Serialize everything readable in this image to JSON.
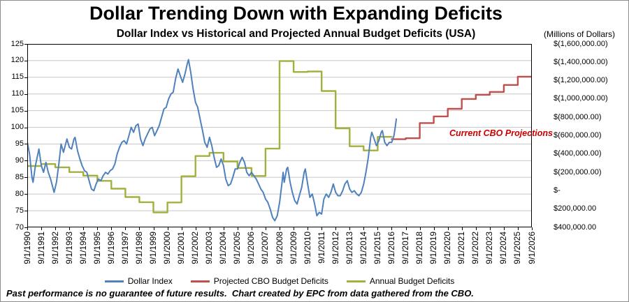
{
  "footer": {
    "disclaimer": "Past performance is no guarantee of future results.  Chart created by EPC from data gathered from the CBO."
  },
  "chart_data": {
    "type": "line",
    "title": "Dollar Trending Down with Expanding Deficits",
    "subtitle": "Dollar Index vs Historical and Projected Annual Budget Deficits (USA)",
    "grid": true,
    "legend_position": "bottom",
    "annotation": {
      "text": "Current CBO Projections",
      "color": "#cc0000"
    },
    "x_axis": {
      "min": 1990.667,
      "max": 2026.667,
      "tick_labels": [
        "9/1/1990",
        "9/1/1991",
        "9/1/1992",
        "9/1/1993",
        "9/1/1994",
        "9/1/1995",
        "9/1/1996",
        "9/1/1997",
        "9/1/1998",
        "9/1/1999",
        "9/1/2000",
        "9/1/2001",
        "9/1/2002",
        "9/1/2003",
        "9/1/2004",
        "9/1/2005",
        "9/1/2006",
        "9/1/2007",
        "9/1/2008",
        "9/1/2009",
        "9/1/2010",
        "9/1/2011",
        "9/1/2012",
        "9/1/2013",
        "9/1/2014",
        "9/1/2015",
        "9/1/2016",
        "9/1/2017",
        "9/1/2018",
        "9/1/2019",
        "9/1/2020",
        "9/1/2021",
        "9/1/2022",
        "9/1/2023",
        "9/1/2024",
        "9/1/2025",
        "9/1/2026"
      ]
    },
    "left_axis": {
      "min": 70,
      "max": 125,
      "tick_step": 5,
      "ticks": [
        125,
        120,
        115,
        110,
        105,
        100,
        95,
        90,
        85,
        80,
        75,
        70
      ]
    },
    "right_axis": {
      "units_label": "(Millions of Dollars)",
      "top_value": -1600000,
      "bottom_value": 400000,
      "tick_labels": [
        "$(1,600,000.00)",
        "$(1,400,000.00)",
        "$(1,200,000.00)",
        "$(1,000,000.00)",
        "$(800,000.00)",
        "$(600,000.00)",
        "$(400,000.00)",
        "$(200,000.00)",
        "$-",
        "$200,000.00",
        "$400,000.00"
      ]
    },
    "legend": [
      {
        "id": "dollar-index",
        "label": "Dollar Index",
        "color": "#4f81bd"
      },
      {
        "id": "projected-cbo-budget-deficits",
        "label": "Projected CBO Budget Deficits",
        "color": "#c0504d"
      },
      {
        "id": "annual-budget-deficits",
        "label": "Annual Budget Deficits",
        "color": "#a4b03c"
      }
    ],
    "series": [
      {
        "id": "annual-budget-deficits",
        "name": "Annual Budget Deficits",
        "axis": "right",
        "color": "#a4b03c",
        "width": 2.4,
        "step": true,
        "years": [
          1990,
          1991,
          1992,
          1993,
          1994,
          1995,
          1996,
          1997,
          1998,
          1999,
          2000,
          2001,
          2002,
          2003,
          2004,
          2005,
          2006,
          2007,
          2008,
          2009,
          2010,
          2011,
          2012,
          2013,
          2014,
          2015,
          2016
        ],
        "values": [
          -221036,
          -269238,
          -290321,
          -255051,
          -203186,
          -163952,
          -107431,
          -21884,
          69270,
          125610,
          236241,
          128236,
          -157758,
          -377585,
          -412727,
          -318346,
          -248181,
          -160701,
          -458553,
          -1412688,
          -1294373,
          -1299593,
          -1086963,
          -679544,
          -484602,
          -438496,
          -587412
        ]
      },
      {
        "id": "projected-cbo-budget-deficits",
        "name": "Projected CBO Budget Deficits",
        "axis": "right",
        "color": "#c0504d",
        "width": 2.4,
        "step": true,
        "years": [
          2017,
          2018,
          2019,
          2020,
          2021,
          2022,
          2023,
          2024,
          2025,
          2026
        ],
        "values": [
          -561000,
          -572000,
          -738000,
          -810000,
          -893000,
          -1000000,
          -1046000,
          -1077000,
          -1153000,
          -1243000
        ]
      },
      {
        "id": "dollar-index",
        "name": "Dollar Index",
        "axis": "left",
        "color": "#4f81bd",
        "width": 2,
        "step": false,
        "points": [
          [
            1990.67,
            95.5
          ],
          [
            1990.83,
            92
          ],
          [
            1991.0,
            85
          ],
          [
            1991.08,
            83.5
          ],
          [
            1991.25,
            88.5
          ],
          [
            1991.5,
            93.5
          ],
          [
            1991.67,
            88.5
          ],
          [
            1991.83,
            86.5
          ],
          [
            1992.0,
            89.5
          ],
          [
            1992.17,
            86.5
          ],
          [
            1992.33,
            84.5
          ],
          [
            1992.58,
            80.5
          ],
          [
            1992.75,
            83.5
          ],
          [
            1992.92,
            89
          ],
          [
            1993.08,
            95
          ],
          [
            1993.25,
            92.5
          ],
          [
            1993.5,
            96.5
          ],
          [
            1993.67,
            94
          ],
          [
            1993.83,
            93.5
          ],
          [
            1994.0,
            96.5
          ],
          [
            1994.08,
            97
          ],
          [
            1994.25,
            93
          ],
          [
            1994.42,
            90.5
          ],
          [
            1994.58,
            88.5
          ],
          [
            1994.75,
            87
          ],
          [
            1994.92,
            86.5
          ],
          [
            1995.08,
            84
          ],
          [
            1995.25,
            81.5
          ],
          [
            1995.42,
            81
          ],
          [
            1995.58,
            83
          ],
          [
            1995.75,
            84.5
          ],
          [
            1995.92,
            84
          ],
          [
            1996.08,
            85.5
          ],
          [
            1996.25,
            86.5
          ],
          [
            1996.42,
            86
          ],
          [
            1996.58,
            87
          ],
          [
            1996.75,
            87.5
          ],
          [
            1996.92,
            89
          ],
          [
            1997.08,
            92
          ],
          [
            1997.25,
            94
          ],
          [
            1997.42,
            95.5
          ],
          [
            1997.58,
            96
          ],
          [
            1997.75,
            95
          ],
          [
            1997.92,
            97.5
          ],
          [
            1998.08,
            100
          ],
          [
            1998.25,
            98.5
          ],
          [
            1998.42,
            100.5
          ],
          [
            1998.58,
            101
          ],
          [
            1998.75,
            96.5
          ],
          [
            1998.92,
            94.5
          ],
          [
            1999.08,
            96.5
          ],
          [
            1999.25,
            98
          ],
          [
            1999.42,
            99.5
          ],
          [
            1999.58,
            100
          ],
          [
            1999.75,
            97.5
          ],
          [
            1999.92,
            99
          ],
          [
            2000.08,
            100.5
          ],
          [
            2000.25,
            103
          ],
          [
            2000.42,
            105.5
          ],
          [
            2000.58,
            106
          ],
          [
            2000.75,
            108.5
          ],
          [
            2000.92,
            110
          ],
          [
            2001.08,
            110.5
          ],
          [
            2001.25,
            114.5
          ],
          [
            2001.42,
            117.5
          ],
          [
            2001.58,
            115.5
          ],
          [
            2001.75,
            113.5
          ],
          [
            2001.92,
            116
          ],
          [
            2002.08,
            119
          ],
          [
            2002.17,
            120.3
          ],
          [
            2002.33,
            116.5
          ],
          [
            2002.5,
            111.5
          ],
          [
            2002.67,
            107.5
          ],
          [
            2002.83,
            106
          ],
          [
            2003.0,
            102.5
          ],
          [
            2003.17,
            99
          ],
          [
            2003.33,
            95.5
          ],
          [
            2003.5,
            94
          ],
          [
            2003.67,
            97
          ],
          [
            2003.83,
            94.5
          ],
          [
            2004.0,
            91
          ],
          [
            2004.17,
            88
          ],
          [
            2004.33,
            88.5
          ],
          [
            2004.5,
            90.5
          ],
          [
            2004.67,
            88.5
          ],
          [
            2004.83,
            84.5
          ],
          [
            2005.0,
            82.5
          ],
          [
            2005.17,
            83
          ],
          [
            2005.33,
            85
          ],
          [
            2005.5,
            87.5
          ],
          [
            2005.67,
            87.5
          ],
          [
            2005.83,
            89.5
          ],
          [
            2006.0,
            91
          ],
          [
            2006.17,
            89.5
          ],
          [
            2006.33,
            86.5
          ],
          [
            2006.5,
            85.5
          ],
          [
            2006.67,
            86.5
          ],
          [
            2006.83,
            85.5
          ],
          [
            2007.0,
            84.5
          ],
          [
            2007.17,
            83
          ],
          [
            2007.33,
            81.5
          ],
          [
            2007.5,
            80.5
          ],
          [
            2007.67,
            78.5
          ],
          [
            2007.83,
            77.5
          ],
          [
            2008.0,
            75.5
          ],
          [
            2008.17,
            73
          ],
          [
            2008.33,
            72
          ],
          [
            2008.5,
            73.5
          ],
          [
            2008.67,
            77.5
          ],
          [
            2008.83,
            83
          ],
          [
            2008.92,
            86.5
          ],
          [
            2009.0,
            83.5
          ],
          [
            2009.17,
            87.5
          ],
          [
            2009.25,
            88
          ],
          [
            2009.42,
            83.5
          ],
          [
            2009.58,
            80.5
          ],
          [
            2009.75,
            78
          ],
          [
            2009.92,
            77
          ],
          [
            2010.08,
            79.5
          ],
          [
            2010.25,
            82
          ],
          [
            2010.42,
            86.5
          ],
          [
            2010.5,
            87.5
          ],
          [
            2010.67,
            83
          ],
          [
            2010.83,
            79
          ],
          [
            2011.0,
            80
          ],
          [
            2011.17,
            77
          ],
          [
            2011.33,
            73.5
          ],
          [
            2011.5,
            74.5
          ],
          [
            2011.67,
            74
          ],
          [
            2011.83,
            78.5
          ],
          [
            2012.0,
            80
          ],
          [
            2012.17,
            79
          ],
          [
            2012.33,
            80.5
          ],
          [
            2012.5,
            83
          ],
          [
            2012.67,
            80.5
          ],
          [
            2012.83,
            79.5
          ],
          [
            2013.0,
            79.5
          ],
          [
            2013.17,
            81
          ],
          [
            2013.33,
            83
          ],
          [
            2013.5,
            84
          ],
          [
            2013.67,
            81.5
          ],
          [
            2013.83,
            80.5
          ],
          [
            2014.0,
            81
          ],
          [
            2014.17,
            80
          ],
          [
            2014.33,
            79.5
          ],
          [
            2014.5,
            80.5
          ],
          [
            2014.67,
            83
          ],
          [
            2014.83,
            86.5
          ],
          [
            2015.0,
            91
          ],
          [
            2015.17,
            97
          ],
          [
            2015.25,
            98.5
          ],
          [
            2015.42,
            96.5
          ],
          [
            2015.58,
            94.5
          ],
          [
            2015.75,
            96
          ],
          [
            2015.92,
            98.5
          ],
          [
            2016.0,
            99
          ],
          [
            2016.17,
            95.5
          ],
          [
            2016.33,
            94.5
          ],
          [
            2016.5,
            95.5
          ],
          [
            2016.67,
            95.5
          ],
          [
            2016.83,
            97.5
          ],
          [
            2016.92,
            100
          ],
          [
            2017.0,
            102.5
          ]
        ]
      }
    ]
  }
}
